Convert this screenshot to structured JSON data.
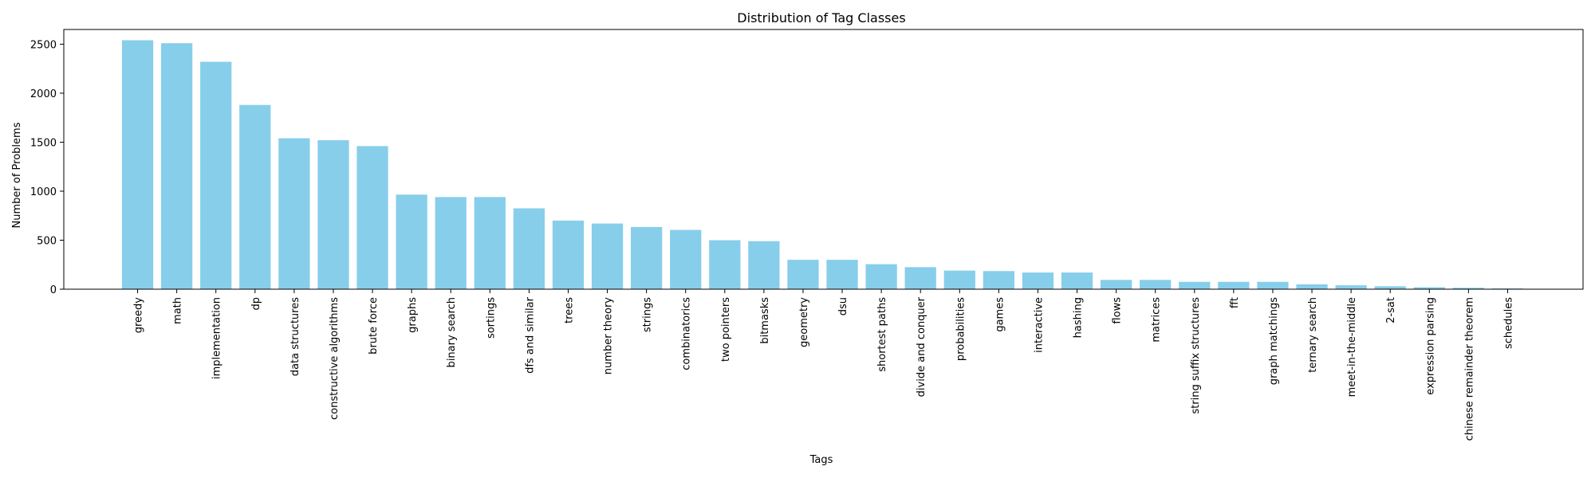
{
  "chart_data": {
    "type": "bar",
    "title": "Distribution of Tag Classes",
    "xlabel": "Tags",
    "ylabel": "Number of Problems",
    "ylim": [
      0,
      2650
    ],
    "yticks": [
      0,
      500,
      1000,
      1500,
      2000,
      2500
    ],
    "grid": false,
    "bar_color": "#87ceeb",
    "categories": [
      "greedy",
      "math",
      "implementation",
      "dp",
      "data structures",
      "constructive algorithms",
      "brute force",
      "graphs",
      "binary search",
      "sortings",
      "dfs and similar",
      "trees",
      "number theory",
      "strings",
      "combinatorics",
      "two pointers",
      "bitmasks",
      "geometry",
      "dsu",
      "shortest paths",
      "divide and conquer",
      "probabilities",
      "games",
      "interactive",
      "hashing",
      "flows",
      "matrices",
      "string suffix structures",
      "fft",
      "graph matchings",
      "ternary search",
      "meet-in-the-middle",
      "2-sat",
      "expression parsing",
      "chinese remainder theorem",
      "schedules"
    ],
    "values": [
      2540,
      2510,
      2320,
      1880,
      1540,
      1520,
      1460,
      965,
      940,
      940,
      825,
      700,
      670,
      635,
      605,
      500,
      490,
      300,
      300,
      255,
      225,
      190,
      185,
      170,
      170,
      95,
      95,
      75,
      75,
      75,
      50,
      40,
      30,
      20,
      15,
      8
    ]
  }
}
